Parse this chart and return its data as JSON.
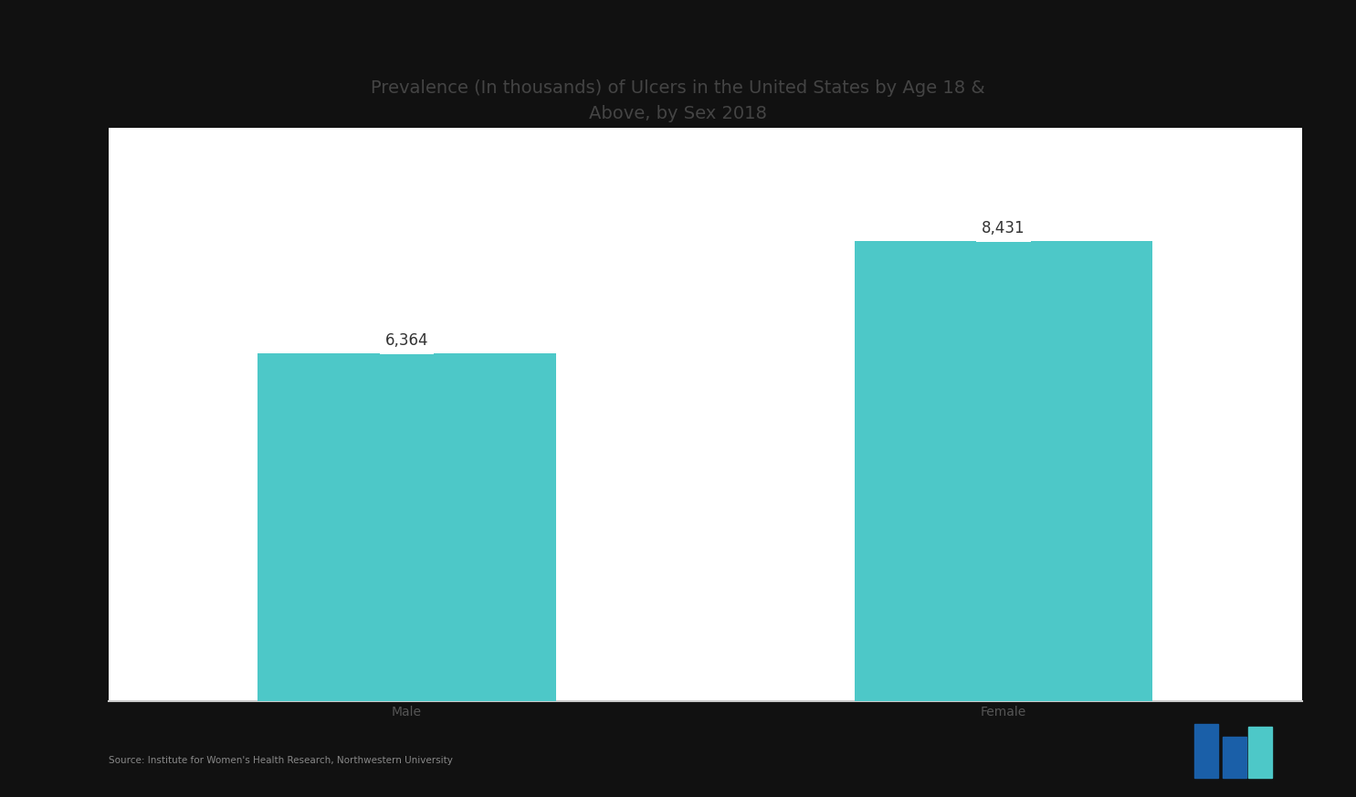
{
  "title_line1": "Prevalence (In thousands) of Ulcers in the United States by Age 18 &",
  "title_line2": "Above, by Sex 2018",
  "categories": [
    "Male",
    "Female"
  ],
  "values": [
    6364,
    8431
  ],
  "bar_color": "#4DC8C8",
  "background_color": "#111111",
  "plot_bg_color": "#ffffff",
  "title_color": "#444444",
  "tick_color": "#555555",
  "label_color": "#333333",
  "label_bg": "#ffffff",
  "spine_color": "#cccccc",
  "bar_width": 0.25,
  "ylim": [
    0,
    10500
  ],
  "title_fontsize": 14,
  "tick_fontsize": 10,
  "value_fontsize": 12,
  "source_text": "Source: Institute for Women's Health Research, Northwestern University"
}
